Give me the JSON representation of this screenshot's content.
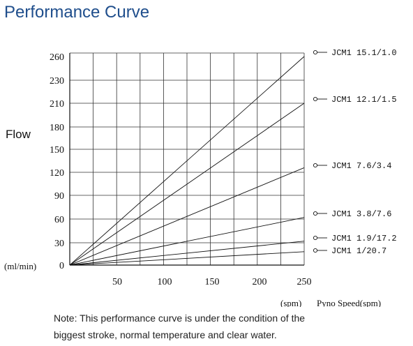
{
  "header": {
    "title": "Performance Curve"
  },
  "chart_data": {
    "type": "line",
    "ylabel": "Flow",
    "yunit": "(ml/min)",
    "xlabel": "Pyno Speed(spm)",
    "xunit": "(spm)",
    "xlim": [
      0,
      250
    ],
    "ylim": [
      0,
      260
    ],
    "x_ticks": [
      "50",
      "100",
      "150",
      "200",
      "250"
    ],
    "y_ticks": [
      "0",
      "30",
      "60",
      "90",
      "120",
      "150",
      "180",
      "210",
      "230",
      "260"
    ],
    "y_tick_values": [
      0,
      30,
      60,
      90,
      120,
      150,
      180,
      210,
      230,
      260
    ],
    "grid": true,
    "legend_position": "right",
    "series": [
      {
        "name": "JCM1 15.1/1.0",
        "x": [
          0,
          250
        ],
        "y": [
          0,
          260
        ]
      },
      {
        "name": "JCM1 12.1/1.5",
        "x": [
          0,
          250
        ],
        "y": [
          0,
          210
        ]
      },
      {
        "name": "JCM1 7.6/3.4",
        "x": [
          0,
          250
        ],
        "y": [
          0,
          126
        ]
      },
      {
        "name": "JCM1 3.8/7.6",
        "x": [
          0,
          250
        ],
        "y": [
          0,
          62
        ]
      },
      {
        "name": "JCM1 1.9/17.2",
        "x": [
          0,
          250
        ],
        "y": [
          0,
          32
        ]
      },
      {
        "name": "JCM1 1/20.7",
        "x": [
          0,
          250
        ],
        "y": [
          0,
          18
        ]
      }
    ]
  },
  "note": {
    "line1": "Note: This performance curve is under the condition of the",
    "line2": "biggest stroke, normal temperature and clear water."
  }
}
